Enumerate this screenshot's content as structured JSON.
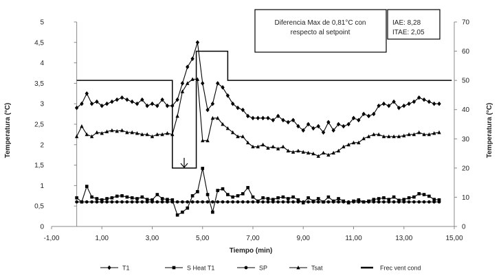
{
  "chart_data": {
    "type": "line",
    "xlabel": "Tiempo (min)",
    "ylabel": "Temperatura (°C)",
    "y2label": "Temperatura (°C)",
    "xlim": [
      -1,
      15
    ],
    "ylim": [
      0,
      5
    ],
    "y2lim": [
      0,
      70
    ],
    "x_ticks": [
      "-1,00",
      "1,00",
      "3,00",
      "5,00",
      "7,00",
      "9,00",
      "11,00",
      "13,00",
      "15,00"
    ],
    "y_ticks": [
      "0",
      "0,5",
      "1",
      "1,5",
      "2",
      "2,5",
      "3",
      "3,5",
      "4",
      "4,5",
      "5"
    ],
    "y2_ticks": [
      "0",
      "10",
      "20",
      "30",
      "40",
      "50",
      "60",
      "70"
    ],
    "grid": false,
    "legend_position": "bottom",
    "annotations": {
      "box1": [
        "Diferencia Max de 0,81°C con",
        "respecto al setpoint"
      ],
      "box2": [
        "IAE: 8,28",
        "ITAE: 2,05"
      ]
    },
    "colors": {
      "series": "#000000"
    },
    "series": [
      {
        "name": "T1",
        "marker": "diamond",
        "axis": "left",
        "x": [
          0,
          0.2,
          0.4,
          0.6,
          0.8,
          1.0,
          1.2,
          1.4,
          1.6,
          1.8,
          2.0,
          2.2,
          2.4,
          2.6,
          2.8,
          3.0,
          3.2,
          3.4,
          3.6,
          3.8,
          4.0,
          4.2,
          4.4,
          4.6,
          4.8,
          5.0,
          5.2,
          5.4,
          5.6,
          5.8,
          6.0,
          6.2,
          6.4,
          6.6,
          6.8,
          7.0,
          7.2,
          7.4,
          7.6,
          7.8,
          8.0,
          8.2,
          8.4,
          8.6,
          8.8,
          9.0,
          9.2,
          9.4,
          9.6,
          9.8,
          10.0,
          10.2,
          10.4,
          10.6,
          10.8,
          11.0,
          11.2,
          11.4,
          11.6,
          11.8,
          12.0,
          12.2,
          12.4,
          12.6,
          12.8,
          13.0,
          13.2,
          13.4,
          13.6,
          13.8,
          14.0,
          14.2,
          14.4
        ],
        "values": [
          2.9,
          3.0,
          3.25,
          3.0,
          3.05,
          2.95,
          3.0,
          3.05,
          3.1,
          3.15,
          3.1,
          3.05,
          3.0,
          3.1,
          2.95,
          3.0,
          2.95,
          3.1,
          2.95,
          2.95,
          3.1,
          3.5,
          3.9,
          4.1,
          4.5,
          3.5,
          2.85,
          3.0,
          3.5,
          3.4,
          3.2,
          3.0,
          2.9,
          2.85,
          2.7,
          2.65,
          2.65,
          2.65,
          2.65,
          2.6,
          2.7,
          2.6,
          2.55,
          2.6,
          2.45,
          2.35,
          2.5,
          2.4,
          2.45,
          2.3,
          2.55,
          2.35,
          2.5,
          2.45,
          2.5,
          2.65,
          2.6,
          2.75,
          2.7,
          2.75,
          2.95,
          3.0,
          2.95,
          3.05,
          2.9,
          2.95,
          3.0,
          3.05,
          3.15,
          3.1,
          3.05,
          3.0,
          3.0
        ]
      },
      {
        "name": "S Heat T1",
        "marker": "square",
        "axis": "left",
        "x": [
          0,
          0.2,
          0.4,
          0.6,
          0.8,
          1.0,
          1.2,
          1.4,
          1.6,
          1.8,
          2.0,
          2.2,
          2.4,
          2.6,
          2.8,
          3.0,
          3.2,
          3.4,
          3.6,
          3.8,
          4.0,
          4.2,
          4.4,
          4.6,
          4.8,
          5.0,
          5.2,
          5.4,
          5.6,
          5.8,
          6.0,
          6.2,
          6.4,
          6.6,
          6.8,
          7.0,
          7.2,
          7.4,
          7.6,
          7.8,
          8.0,
          8.2,
          8.4,
          8.6,
          8.8,
          9.0,
          9.2,
          9.4,
          9.6,
          9.8,
          10.0,
          10.2,
          10.4,
          10.6,
          10.8,
          11.0,
          11.2,
          11.4,
          11.6,
          11.8,
          12.0,
          12.2,
          12.4,
          12.6,
          12.8,
          13.0,
          13.2,
          13.4,
          13.6,
          13.8,
          14.0,
          14.2,
          14.4
        ],
        "values": [
          0.7,
          0.6,
          0.98,
          0.72,
          0.68,
          0.65,
          0.68,
          0.7,
          0.74,
          0.75,
          0.72,
          0.7,
          0.68,
          0.72,
          0.66,
          0.65,
          0.78,
          0.68,
          0.66,
          0.65,
          0.28,
          0.35,
          0.45,
          0.75,
          0.85,
          1.42,
          0.78,
          0.35,
          0.88,
          0.92,
          0.78,
          0.72,
          0.75,
          0.8,
          0.95,
          0.72,
          0.62,
          0.7,
          0.68,
          0.66,
          0.7,
          0.72,
          0.68,
          0.72,
          0.65,
          0.58,
          0.7,
          0.62,
          0.68,
          0.6,
          0.72,
          0.62,
          0.68,
          0.62,
          0.58,
          0.62,
          0.65,
          0.6,
          0.62,
          0.66,
          0.68,
          0.7,
          0.66,
          0.72,
          0.64,
          0.66,
          0.7,
          0.72,
          0.8,
          0.78,
          0.74,
          0.66,
          0.65
        ]
      },
      {
        "name": "SP",
        "marker": "circle",
        "axis": "left",
        "x": [
          0,
          0.2,
          0.4,
          0.6,
          0.8,
          1.0,
          1.2,
          1.4,
          1.6,
          1.8,
          2.0,
          2.2,
          2.4,
          2.6,
          2.8,
          3.0,
          3.2,
          3.4,
          3.6,
          3.8,
          4.0,
          4.2,
          4.4,
          4.6,
          4.8,
          5.0,
          5.2,
          5.4,
          5.6,
          5.8,
          6.0,
          6.2,
          6.4,
          6.6,
          6.8,
          7.0,
          7.2,
          7.4,
          7.6,
          7.8,
          8.0,
          8.2,
          8.4,
          8.6,
          8.8,
          9.0,
          9.2,
          9.4,
          9.6,
          9.8,
          10.0,
          10.2,
          10.4,
          10.6,
          10.8,
          11.0,
          11.2,
          11.4,
          11.6,
          11.8,
          12.0,
          12.2,
          12.4,
          12.6,
          12.8,
          13.0,
          13.2,
          13.4,
          13.6,
          13.8,
          14.0,
          14.2,
          14.4
        ],
        "values": [
          0.6,
          0.6,
          0.6,
          0.6,
          0.6,
          0.6,
          0.6,
          0.6,
          0.6,
          0.6,
          0.6,
          0.6,
          0.6,
          0.6,
          0.6,
          0.6,
          0.6,
          0.6,
          0.6,
          0.6,
          0.6,
          0.6,
          0.6,
          0.6,
          0.6,
          0.6,
          0.6,
          0.6,
          0.6,
          0.6,
          0.6,
          0.6,
          0.6,
          0.6,
          0.6,
          0.6,
          0.6,
          0.6,
          0.6,
          0.6,
          0.6,
          0.6,
          0.6,
          0.6,
          0.6,
          0.6,
          0.6,
          0.6,
          0.6,
          0.6,
          0.6,
          0.6,
          0.6,
          0.6,
          0.6,
          0.6,
          0.6,
          0.6,
          0.6,
          0.6,
          0.6,
          0.6,
          0.6,
          0.6,
          0.6,
          0.6,
          0.6,
          0.6,
          0.6,
          0.6,
          0.6,
          0.6,
          0.6
        ]
      },
      {
        "name": "Tsat",
        "marker": "triangle",
        "axis": "left",
        "x": [
          0,
          0.2,
          0.4,
          0.6,
          0.8,
          1.0,
          1.2,
          1.4,
          1.6,
          1.8,
          2.0,
          2.2,
          2.4,
          2.6,
          2.8,
          3.0,
          3.2,
          3.4,
          3.6,
          3.8,
          4.0,
          4.2,
          4.4,
          4.6,
          4.8,
          5.0,
          5.2,
          5.4,
          5.6,
          5.8,
          6.0,
          6.2,
          6.4,
          6.6,
          6.8,
          7.0,
          7.2,
          7.4,
          7.6,
          7.8,
          8.0,
          8.2,
          8.4,
          8.6,
          8.8,
          9.0,
          9.2,
          9.4,
          9.6,
          9.8,
          10.0,
          10.2,
          10.4,
          10.6,
          10.8,
          11.0,
          11.2,
          11.4,
          11.6,
          11.8,
          12.0,
          12.2,
          12.4,
          12.6,
          12.8,
          13.0,
          13.2,
          13.4,
          13.6,
          13.8,
          14.0,
          14.2,
          14.4
        ],
        "values": [
          2.2,
          2.45,
          2.25,
          2.2,
          2.3,
          2.28,
          2.32,
          2.35,
          2.33,
          2.35,
          2.3,
          2.3,
          2.28,
          2.25,
          2.25,
          2.2,
          2.25,
          2.25,
          2.28,
          2.25,
          2.7,
          3.3,
          3.5,
          3.6,
          3.6,
          2.1,
          2.1,
          2.65,
          2.65,
          2.5,
          2.4,
          2.3,
          2.2,
          2.2,
          2.05,
          1.95,
          1.95,
          2.0,
          1.92,
          1.95,
          1.9,
          1.95,
          1.85,
          1.82,
          1.85,
          1.82,
          1.8,
          1.78,
          1.72,
          1.8,
          1.75,
          1.8,
          1.85,
          1.95,
          2.0,
          2.05,
          2.05,
          2.15,
          2.2,
          2.25,
          2.25,
          2.2,
          2.2,
          2.2,
          2.2,
          2.22,
          2.25,
          2.25,
          2.3,
          2.25,
          2.25,
          2.28,
          2.3
        ]
      },
      {
        "name": "Frec vent cond",
        "marker": "none",
        "axis": "right",
        "step": true,
        "x": [
          0,
          3.8,
          3.8,
          4.75,
          4.75,
          6.0,
          6.0,
          14.9
        ],
        "values": [
          50,
          50,
          20,
          20,
          60,
          60,
          50,
          50
        ]
      }
    ]
  }
}
